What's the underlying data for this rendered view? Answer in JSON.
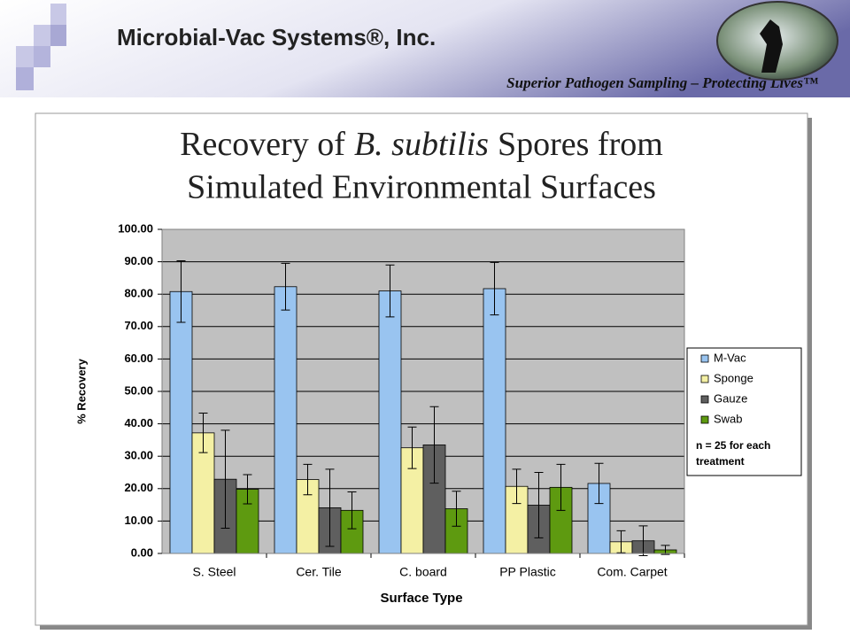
{
  "header": {
    "company": "Microbial-Vac Systems®, Inc.",
    "tagline": "Superior Pathogen Sampling – Protecting Lives™"
  },
  "chart_data": {
    "type": "bar",
    "title": {
      "line1": [
        "Recovery of",
        "B. subtilis",
        "Spores from"
      ],
      "line2": "Simulated Environmental Surfaces"
    },
    "x_label": "Surface Type",
    "y_label": "% Recovery",
    "categories": [
      "S. Steel",
      "Cer. Tile",
      "C. board",
      "PP Plastic",
      "Com. Carpet"
    ],
    "series": [
      {
        "name": "M-Vac",
        "color": "#99c4f0",
        "values": [
          80.8,
          82.3,
          81.0,
          81.7,
          21.6
        ],
        "errors": [
          9.5,
          7.2,
          8.0,
          8.1,
          6.2
        ]
      },
      {
        "name": "Sponge",
        "color": "#f4f0a4",
        "values": [
          37.2,
          22.8,
          32.6,
          20.7,
          3.6
        ],
        "errors": [
          6.1,
          4.7,
          6.4,
          5.3,
          3.4
        ]
      },
      {
        "name": "Gauze",
        "color": "#5f5f5f",
        "values": [
          22.9,
          14.1,
          33.5,
          14.9,
          3.9
        ],
        "errors": [
          15.1,
          11.9,
          11.8,
          10.1,
          4.6
        ]
      },
      {
        "name": "Swab",
        "color": "#5e9a10",
        "values": [
          19.8,
          13.3,
          13.8,
          20.4,
          1.1
        ],
        "errors": [
          4.5,
          5.7,
          5.4,
          7.1,
          1.4
        ]
      }
    ],
    "ylim": [
      0,
      100
    ],
    "yticks": [
      {
        "value": 0,
        "label": "0.00"
      },
      {
        "value": 10,
        "label": "10.00"
      },
      {
        "value": 20,
        "label": "20.00"
      },
      {
        "value": 30,
        "label": "30.00"
      },
      {
        "value": 40,
        "label": "40.00"
      },
      {
        "value": 50,
        "label": "50.00"
      },
      {
        "value": 60,
        "label": "60.00"
      },
      {
        "value": 70,
        "label": "70.00"
      },
      {
        "value": 80,
        "label": "80.00"
      },
      {
        "value": 90,
        "label": "90.00"
      },
      {
        "value": 100,
        "label": "100.00"
      }
    ],
    "grid": true,
    "legend": "right",
    "annotation": [
      "n = 25 for each",
      "treatment"
    ]
  }
}
